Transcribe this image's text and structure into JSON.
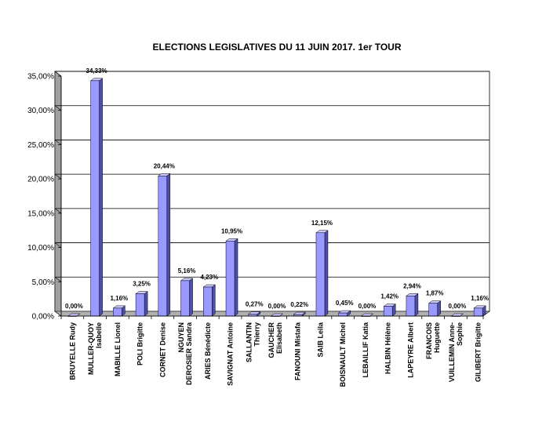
{
  "chart_data": {
    "type": "bar",
    "title": "ELECTIONS LEGISLATIVES DU 11 JUIN 2017. 1er TOUR",
    "xlabel": "",
    "ylabel": "",
    "ylim": [
      0,
      35
    ],
    "yticks": [
      "0,00%",
      "5,00%",
      "10,00%",
      "15,00%",
      "20,00%",
      "25,00%",
      "30,00%",
      "35,00%"
    ],
    "grid": true,
    "legend": "none",
    "bar_color": "#9999ff",
    "categories": [
      [
        "BRUYELLE Rudy"
      ],
      [
        "MULLER-QUOY",
        "Isabelle"
      ],
      [
        "MABILLE Lionel"
      ],
      [
        "POLI Brigitte"
      ],
      [
        "CORNET Denise"
      ],
      [
        "NGUYEN",
        "DEROSIER Sandra"
      ],
      [
        "ARIES Bénédicte"
      ],
      [
        "SAVIGNAT Antoine"
      ],
      [
        "SALLANTIN",
        "Thierry"
      ],
      [
        "GAUCHER",
        "Elisabeth"
      ],
      [
        "FANOUNI Mistafa"
      ],
      [
        "SAIB Leila"
      ],
      [
        "BOISNAULT Michel"
      ],
      [
        "LEBAILLIF Katia"
      ],
      [
        "HALBIN Hélène"
      ],
      [
        "LAPEYRE Albert"
      ],
      [
        "FRANCOIS",
        "Huguette"
      ],
      [
        "VUILLEMIN Anne-",
        "Sophie"
      ],
      [
        "GILIBERT Brigitte"
      ]
    ],
    "values": [
      0.0,
      34.33,
      1.16,
      3.25,
      20.44,
      5.16,
      4.23,
      10.95,
      0.27,
      0.0,
      0.22,
      12.15,
      0.45,
      0.0,
      1.42,
      2.94,
      1.87,
      0.0,
      1.16
    ],
    "data_labels": [
      "0,00%",
      "34,33%",
      "1,16%",
      "3,25%",
      "20,44%",
      "5,16%",
      "4,23%",
      "10,95%",
      "0,27%",
      "0,00%",
      "0,22%",
      "12,15%",
      "0,45%",
      "0,00%",
      "1,42%",
      "2,94%",
      "1,87%",
      "0,00%",
      "1,16%"
    ]
  }
}
